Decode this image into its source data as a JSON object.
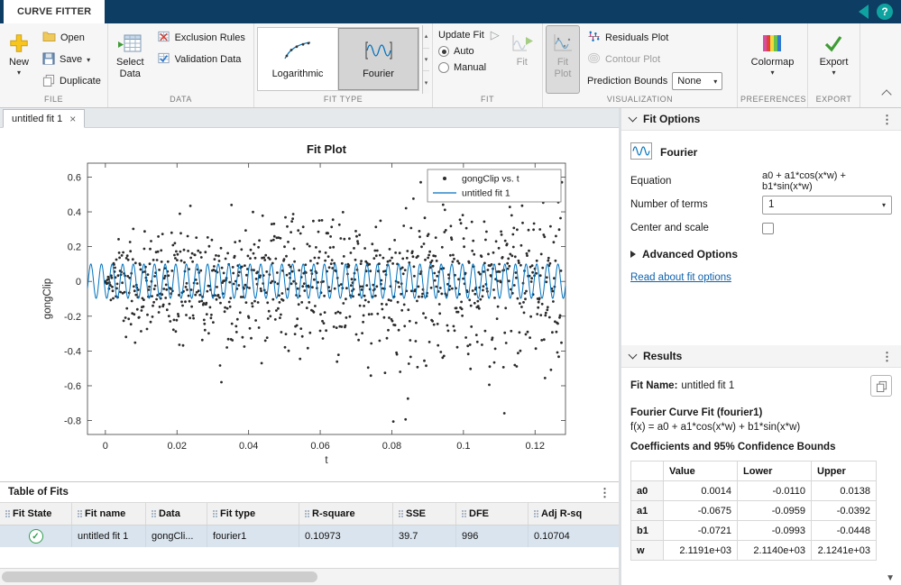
{
  "titlebar": {
    "tab": "CURVE FITTER",
    "help": "?"
  },
  "ribbon": {
    "file": {
      "label": "FILE",
      "new": "New",
      "open": "Open",
      "save": "Save",
      "duplicate": "Duplicate"
    },
    "data": {
      "label": "DATA",
      "select_line1": "Select",
      "select_line2": "Data",
      "exclusion_rules": "Exclusion Rules",
      "validation_data": "Validation Data"
    },
    "fit_type": {
      "label": "FIT TYPE",
      "logarithmic": "Logarithmic",
      "fourier": "Fourier"
    },
    "fit": {
      "label": "FIT",
      "update_fit": "Update Fit",
      "auto": "Auto",
      "manual": "Manual",
      "fit_button": "Fit"
    },
    "visualization": {
      "label": "VISUALIZATION",
      "fit_plot_line1": "Fit",
      "fit_plot_line2": "Plot",
      "residuals_plot": "Residuals Plot",
      "contour_plot": "Contour Plot",
      "prediction_bounds": "Prediction Bounds",
      "prediction_value": "None"
    },
    "preferences": {
      "label": "PREFERENCES",
      "colormap": "Colormap"
    },
    "export": {
      "label": "EXPORT",
      "export": "Export"
    }
  },
  "document": {
    "tab_title": "untitled fit 1",
    "close": "×"
  },
  "chart_data": {
    "type": "scatter",
    "title": "Fit Plot",
    "xlabel": "t",
    "ylabel": "gongClip",
    "xlim": [
      -0.005,
      0.1285
    ],
    "ylim": [
      -0.88,
      0.68
    ],
    "xticks": [
      "0",
      "0.02",
      "0.04",
      "0.06",
      "0.08",
      "0.1",
      "0.12"
    ],
    "yticks": [
      "-0.8",
      "-0.6",
      "-0.4",
      "-0.2",
      "0",
      "0.2",
      "0.4",
      "0.6"
    ],
    "grid": false,
    "legend_position": "top-right",
    "series": [
      {
        "name": "gongClip vs. t",
        "type": "scatter",
        "marker": "point",
        "color": "#2b2b2b",
        "n_points": 1000,
        "x_min": 0,
        "x_max": 0.1275,
        "y_min": -0.855,
        "y_max": 0.57,
        "description": "gong audio waveform samples"
      },
      {
        "name": "untitled fit 1",
        "type": "line",
        "color": "#0072BD",
        "model": "a0 + a1*cos(x*w) + b1*sin(x*w)",
        "a0": 0.0014,
        "a1": -0.0675,
        "b1": -0.0721,
        "w": 2119.1
      }
    ]
  },
  "table_of_fits": {
    "title": "Table of Fits",
    "columns": [
      "Fit State",
      "Fit name",
      "Data",
      "Fit type",
      "R-square",
      "SSE",
      "DFE",
      "Adj R-sq"
    ],
    "row": {
      "fit_name": "untitled fit 1",
      "data": "gongCli...",
      "fit_type": "fourier1",
      "r_square": "0.10973",
      "sse": "39.7",
      "dfe": "996",
      "adj_r_sq": "0.10704"
    }
  },
  "fit_options": {
    "title": "Fit Options",
    "type_name": "Fourier",
    "equation_label": "Equation",
    "equation": "a0 + a1*cos(x*w) + b1*sin(x*w)",
    "terms_label": "Number of terms",
    "terms_value": "1",
    "center_scale_label": "Center and scale",
    "advanced_label": "Advanced Options",
    "link_label": "Read about fit options"
  },
  "results": {
    "title": "Results",
    "fit_name_label": "Fit Name:",
    "fit_name_value": "untitled fit 1",
    "fit_heading": "Fourier Curve Fit (fourier1)",
    "fx_line": "f(x) = a0 + a1*cos(x*w) + b1*sin(x*w)",
    "coeff_heading": "Coefficients and 95% Confidence Bounds",
    "coeff_headers": [
      "Value",
      "Lower",
      "Upper"
    ],
    "coefficients": [
      {
        "name": "a0",
        "value": "0.0014",
        "lower": "-0.0110",
        "upper": "0.0138"
      },
      {
        "name": "a1",
        "value": "-0.0675",
        "lower": "-0.0959",
        "upper": "-0.0392"
      },
      {
        "name": "b1",
        "value": "-0.0721",
        "lower": "-0.0993",
        "upper": "-0.0448"
      },
      {
        "name": "w",
        "value": "2.1191e+03",
        "lower": "2.1140e+03",
        "upper": "2.1241e+03"
      }
    ]
  }
}
